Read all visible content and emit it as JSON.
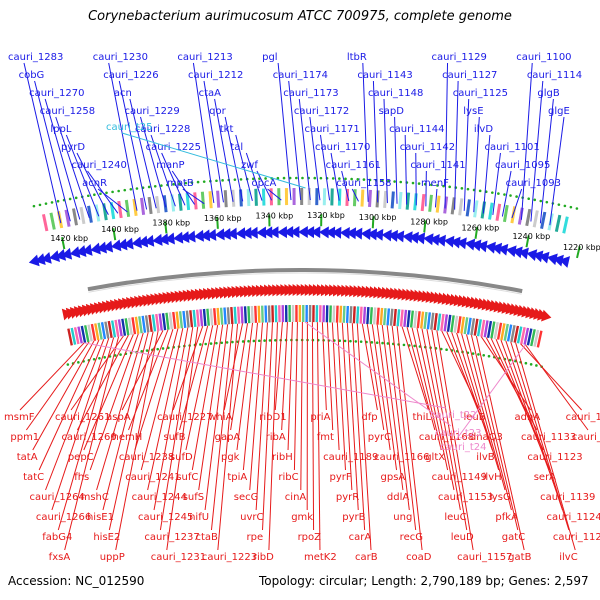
{
  "title": "Corynebacterium aurimucosum ATCC 700975, complete genome",
  "accession": "Accession: NC_012590",
  "summary": "Topology: circular; Length: 2,790,189 bp; Genes: 2,597",
  "colors": {
    "forward": "#1a1ae6",
    "reverse": "#e61a1a",
    "forward_rna": "#33bbdd",
    "reverse_rna": "#ee88cc",
    "backbone": "#888888",
    "tick": "#22aa22"
  },
  "kbp_labels": [
    "1220 kbp",
    "1240 kbp",
    "1260 kbp",
    "1280 kbp",
    "1300 kbp",
    "1320 kbp",
    "1340 kbp",
    "1360 kbp",
    "1380 kbp",
    "1400 kbp",
    "1420 kbp"
  ],
  "forward_labels": [
    "cauri_1283",
    "cobG",
    "cauri_1270",
    "cauri_1258",
    "lppL",
    "pyrD",
    "cauri_1240",
    "acnR",
    "cauri_1230",
    "cauri_1226",
    "acn",
    "cauri_1229",
    "cauri_1228",
    "cauri_1225",
    "manP",
    "mptB",
    "cauri_1213",
    "cauri_1212",
    "ctaA",
    "qor",
    "tkt",
    "tal",
    "zwf",
    "opcA",
    "pgl",
    "cauri_1174",
    "cauri_1173",
    "cauri_1172",
    "cauri_1171",
    "cauri_1170",
    "cauri_1161",
    "cauri_1158",
    "ltbR",
    "cauri_1143",
    "cauri_1148",
    "sapD",
    "cauri_1144",
    "cauri_1142",
    "cauri_1141",
    "menF",
    "cauri_1129",
    "cauri_1127",
    "cauri_1125",
    "lysE",
    "ilvD",
    "cauri_1101",
    "cauri_1095",
    "cauri_1093",
    "cauri_1100",
    "cauri_1114",
    "glgB",
    "glgE"
  ],
  "forward_rna_labels": [
    "cauri_t25"
  ],
  "reverse_labels": [
    "msmF",
    "ppm1",
    "tatA",
    "tatC",
    "cauri_1264",
    "cauri_1266",
    "fabG4",
    "fxsA",
    "cauri_1261",
    "cauri_1260",
    "pepC",
    "fhs",
    "mshC",
    "hisE1",
    "hisE2",
    "uppP",
    "aspA",
    "hemH",
    "cauri_1238",
    "cauri_1241",
    "cauri_1244",
    "cauri_1245",
    "cauri_1237",
    "cauri_1231",
    "cauri_1227",
    "sufB",
    "sufD",
    "sufC",
    "sufS",
    "nifU",
    "ctaB",
    "cauri_1223",
    "whiA",
    "gapA",
    "pgk",
    "tpiA",
    "secG",
    "uvrC",
    "rpe",
    "ribD",
    "ribD1",
    "ribA",
    "ribH",
    "ribC",
    "cinA",
    "gmk",
    "rpoZ",
    "metK2",
    "priA",
    "fmt",
    "cauri_1189",
    "pyrF",
    "pyrR",
    "pyrB",
    "carA",
    "carB",
    "dfp",
    "pyrC",
    "cauri_1166",
    "gpsA",
    "ddlA",
    "ung",
    "recG",
    "coaD",
    "thiL",
    "cauri_1168",
    "gltX",
    "cauri_1149",
    "cauri_1153",
    "leuC",
    "leuD",
    "cauri_1157",
    "leuB",
    "dnaQ3",
    "ilvB",
    "ilvH",
    "lysG",
    "pfkA",
    "gatC",
    "gatB",
    "adhA",
    "cauri_1133",
    "cauri_1123",
    "serA",
    "cauri_1139",
    "cauri_1124",
    "cauri_1126",
    "ilvC",
    "cauri_1134",
    "cauri_1137"
  ],
  "reverse_rna_labels": [
    "cauri_t22",
    "cauri_t23",
    "cauri_t24"
  ]
}
